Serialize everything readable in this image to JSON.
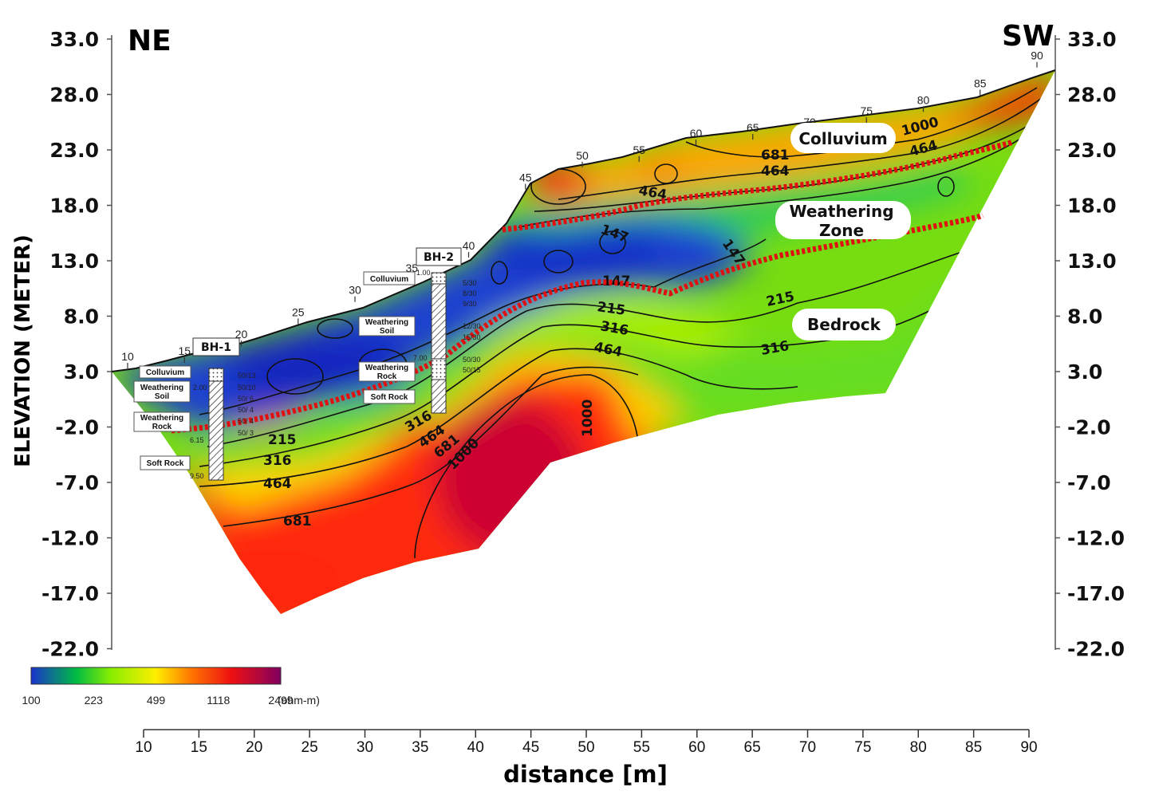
{
  "chart_data": {
    "type": "heatmap",
    "title": "",
    "xlabel": "distance [m]",
    "ylabel": "ELEVATION (METER)",
    "left_direction": "NE",
    "right_direction": "SW",
    "xlim": [
      10,
      90
    ],
    "ylim": [
      -22,
      33
    ],
    "x_ticks": [
      "10",
      "15",
      "20",
      "25",
      "30",
      "35",
      "40",
      "45",
      "50",
      "55",
      "60",
      "65",
      "70",
      "75",
      "80",
      "85",
      "90"
    ],
    "y_ticks": [
      "33.0",
      "28.0",
      "23.0",
      "18.0",
      "13.0",
      "8.0",
      "3.0",
      "-2.0",
      "-7.0",
      "-12.0",
      "-17.0",
      "-22.0"
    ],
    "surface_distance_labels": [
      "10",
      "15",
      "20",
      "25",
      "30",
      "35",
      "40",
      "45",
      "50",
      "55",
      "60",
      "65",
      "70",
      "75",
      "80",
      "85",
      "90"
    ],
    "surface_profile": [
      [
        10,
        3
      ],
      [
        15,
        3.5
      ],
      [
        20,
        5
      ],
      [
        25,
        7
      ],
      [
        30,
        9
      ],
      [
        35,
        11
      ],
      [
        40,
        13
      ],
      [
        43,
        17
      ],
      [
        45,
        19
      ],
      [
        50,
        21
      ],
      [
        55,
        21.5
      ],
      [
        60,
        23
      ],
      [
        65,
        23.5
      ],
      [
        70,
        24
      ],
      [
        75,
        25
      ],
      [
        80,
        26
      ],
      [
        85,
        27.5
      ],
      [
        90,
        30
      ]
    ],
    "colorbar": {
      "ticks": [
        "100",
        "223",
        "499",
        "1118",
        "2499"
      ],
      "unit": "(ohm-m)",
      "colors": [
        "#1a33cc",
        "#00bb44",
        "#88ee00",
        "#ffee00",
        "#ff7700",
        "#ee1111",
        "#800060"
      ]
    },
    "contour_levels": [
      "147",
      "215",
      "316",
      "464",
      "681",
      "1000"
    ],
    "zone_labels": [
      "Colluvium",
      "Weathering Zone",
      "Bedrock"
    ],
    "boreholes": [
      {
        "name": "BH-1",
        "x": 16,
        "layers": [
          "Colluvium",
          "Weathering Soil",
          "Weathering Rock",
          "Soft Rock"
        ],
        "depth_labels": [
          "0.50",
          "2.00",
          "6.15",
          "9.50"
        ],
        "n_values": [
          "50/13",
          "50/10",
          "50/ 6",
          "50/ 4",
          "50/ 4",
          "50/ 3"
        ]
      },
      {
        "name": "BH-2",
        "x": 36,
        "layers": [
          "Colluvium",
          "Weathering Soil",
          "Weathering Rock",
          "Soft Rock"
        ],
        "depth_labels": [
          "1.00",
          "7.00"
        ],
        "n_values": [
          "5/30",
          "8/30",
          "9/30",
          "12/30",
          "15/30",
          "50/30",
          "50/15"
        ]
      }
    ],
    "boundaries": [
      "Colluvium / Weathering Zone",
      "Weathering Zone / Bedrock"
    ]
  }
}
